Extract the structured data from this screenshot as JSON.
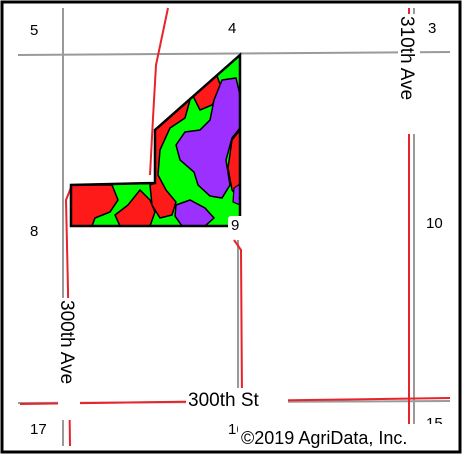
{
  "map": {
    "section_labels": {
      "s5": "5",
      "s4": "4",
      "s3": "3",
      "s8": "8",
      "s9": "9",
      "s10": "10",
      "s17": "17",
      "s16": "16",
      "s15": "15"
    },
    "road_labels": {
      "road_310th": "310th Ave",
      "road_300th_ave": "300th Ave",
      "road_300th_st": "300th St"
    },
    "copyright": "©2019 AgriData, Inc.",
    "colors": {
      "road_red": "#e8232b",
      "section_line_gray": "#9a9a9a",
      "zone_green": "#00ff00",
      "zone_red": "#ff1a1a",
      "zone_purple": "#9b30ff",
      "outline_black": "#000000"
    }
  }
}
